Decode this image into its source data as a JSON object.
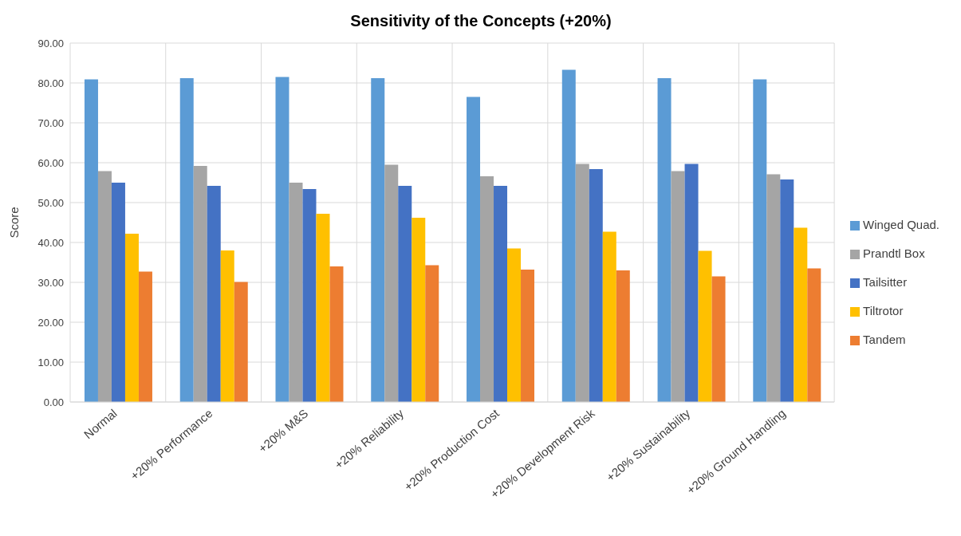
{
  "chart_data": {
    "type": "bar",
    "title": "Sensitivity of the Concepts (+20%)",
    "ylabel": "Score",
    "categories": [
      "Normal",
      "+20% Performance",
      "+20% M&S",
      "+20% Reliability",
      "+20% Production Cost",
      "+20% Development Risk",
      "+20% Sustainability",
      "+20% Ground Handling"
    ],
    "series": [
      {
        "name": "Winged Quad.",
        "color": "#5b9bd5",
        "values": [
          80.9,
          81.2,
          81.5,
          81.2,
          76.5,
          83.3,
          81.2,
          80.9
        ]
      },
      {
        "name": "Prandtl Box",
        "color": "#a5a5a5",
        "values": [
          57.9,
          59.2,
          55.0,
          59.5,
          56.6,
          59.7,
          57.9,
          57.1
        ]
      },
      {
        "name": "Tailsitter",
        "color": "#4472c4",
        "values": [
          55.0,
          54.2,
          53.4,
          54.2,
          54.2,
          58.4,
          59.7,
          55.8
        ]
      },
      {
        "name": "Tiltrotor",
        "color": "#ffc000",
        "values": [
          42.2,
          38.0,
          47.2,
          46.2,
          38.5,
          42.7,
          37.9,
          43.7
        ]
      },
      {
        "name": "Tandem",
        "color": "#ed7d31",
        "values": [
          32.7,
          30.1,
          34.0,
          34.3,
          33.2,
          33.0,
          31.5,
          33.5
        ]
      }
    ],
    "ylim": [
      0,
      90
    ],
    "yticks": [
      {
        "value": 0,
        "label": "0.00"
      },
      {
        "value": 10,
        "label": "10.00"
      },
      {
        "value": 20,
        "label": "20.00"
      },
      {
        "value": 30,
        "label": "30.00"
      },
      {
        "value": 40,
        "label": "40.00"
      },
      {
        "value": 50,
        "label": "50.00"
      },
      {
        "value": 60,
        "label": "60.00"
      },
      {
        "value": 70,
        "label": "70.00"
      },
      {
        "value": 80,
        "label": "80.00"
      },
      {
        "value": 90,
        "label": "90.00"
      }
    ],
    "grid": true,
    "legend": "right"
  }
}
